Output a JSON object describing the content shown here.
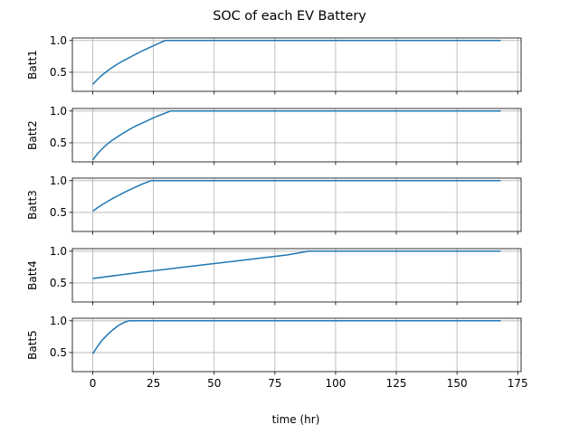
{
  "title": "SOC of each EV Battery",
  "xlabel": "time (hr)",
  "line_color": "#1f77b4",
  "grid_color": "#b0b0b0",
  "chart_data": {
    "type": "line",
    "title": "SOC of each EV Battery",
    "xlabel": "time (hr)",
    "xlim": [
      -8.4,
      176.4
    ],
    "xticks": [
      0,
      25,
      50,
      75,
      100,
      125,
      150,
      175
    ],
    "ylim": [
      0.2,
      1.04
    ],
    "yticks": [
      0.5,
      1.0
    ],
    "grid": true,
    "shared_x": true,
    "subplots": [
      {
        "ylabel": "Batt1",
        "series": [
          {
            "x": [
              0,
              2,
              4,
              6,
              8,
              10,
              12,
              14,
              16,
              18,
              20,
              22,
              24,
              26,
              28,
              30,
              32,
              168
            ],
            "y": [
              0.31,
              0.39,
              0.46,
              0.52,
              0.575,
              0.625,
              0.67,
              0.71,
              0.75,
              0.79,
              0.83,
              0.865,
              0.9,
              0.935,
              0.97,
              1.0,
              1.0,
              1.0
            ]
          }
        ]
      },
      {
        "ylabel": "Batt2",
        "series": [
          {
            "x": [
              0,
              2,
              4,
              6,
              8,
              10,
              12,
              14,
              16,
              18,
              20,
              22,
              24,
              26,
              28,
              30,
              32,
              168
            ],
            "y": [
              0.23,
              0.33,
              0.41,
              0.48,
              0.54,
              0.59,
              0.64,
              0.685,
              0.73,
              0.77,
              0.805,
              0.84,
              0.875,
              0.91,
              0.94,
              0.97,
              1.0,
              1.0
            ]
          }
        ]
      },
      {
        "ylabel": "Batt3",
        "series": [
          {
            "x": [
              0,
              2,
              4,
              6,
              8,
              10,
              12,
              14,
              16,
              18,
              20,
              22,
              24,
              168
            ],
            "y": [
              0.52,
              0.575,
              0.625,
              0.67,
              0.715,
              0.755,
              0.795,
              0.835,
              0.87,
              0.905,
              0.94,
              0.97,
              1.0,
              1.0
            ]
          }
        ]
      },
      {
        "ylabel": "Batt4",
        "series": [
          {
            "x": [
              0,
              10,
              20,
              30,
              40,
              50,
              60,
              70,
              80,
              89,
              168
            ],
            "y": [
              0.57,
              0.62,
              0.67,
              0.715,
              0.76,
              0.805,
              0.85,
              0.895,
              0.94,
              1.0,
              1.0
            ]
          }
        ]
      },
      {
        "ylabel": "Batt5",
        "series": [
          {
            "x": [
              0,
              1,
              2,
              3,
              4,
              5,
              6,
              7,
              8,
              9,
              10,
              11,
              12,
              13,
              14,
              15,
              168
            ],
            "y": [
              0.48,
              0.54,
              0.6,
              0.65,
              0.7,
              0.74,
              0.78,
              0.815,
              0.85,
              0.88,
              0.91,
              0.935,
              0.955,
              0.975,
              0.99,
              1.0,
              1.0
            ]
          }
        ]
      }
    ]
  }
}
